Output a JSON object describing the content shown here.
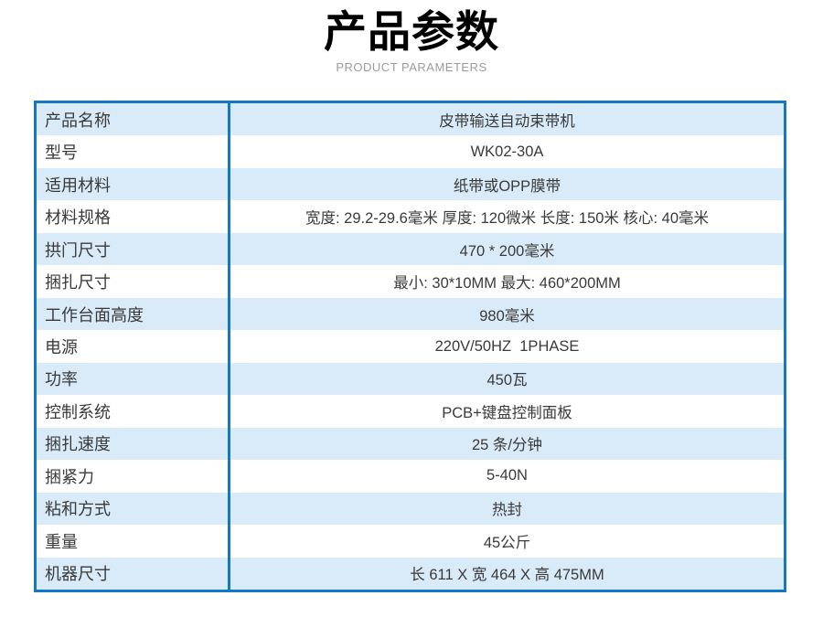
{
  "header": {
    "title": "产品参数",
    "subtitle": "PRODUCT PARAMETERS"
  },
  "colors": {
    "table_border": "#1478c4",
    "stripe_bg": "#d9eaf8",
    "title_color": "#000000",
    "subtitle_color": "#9b9b9b",
    "label_color": "#3a3a3a",
    "value_color": "#3a3a3a",
    "page_bg": "#ffffff"
  },
  "table": {
    "rows": [
      {
        "label": "产品名称",
        "value": "皮带输送自动束带机"
      },
      {
        "label": "型号",
        "value": "WK02-30A"
      },
      {
        "label": "适用材料",
        "value": "纸带或OPP膜带"
      },
      {
        "label": "材料规格",
        "value": "宽度: 29.2-29.6毫米 厚度: 120微米 长度: 150米 核心: 40毫米"
      },
      {
        "label": "拱门尺寸",
        "value": "470 * 200毫米"
      },
      {
        "label": "捆扎尺寸",
        "value": "最小: 30*10MM 最大: 460*200MM"
      },
      {
        "label": "工作台面高度",
        "value": "980毫米"
      },
      {
        "label": "电源",
        "value": "220V/50HZ  1PHASE"
      },
      {
        "label": "功率",
        "value": "450瓦"
      },
      {
        "label": "控制系统",
        "value": "PCB+键盘控制面板"
      },
      {
        "label": "捆扎速度",
        "value": "25 条/分钟"
      },
      {
        "label": "捆紧力",
        "value": "5-40N"
      },
      {
        "label": "粘和方式",
        "value": "热封"
      },
      {
        "label": "重量",
        "value": "45公斤"
      },
      {
        "label": "机器尺寸",
        "value": "长 611 X 宽 464 X 高 475MM"
      }
    ]
  }
}
